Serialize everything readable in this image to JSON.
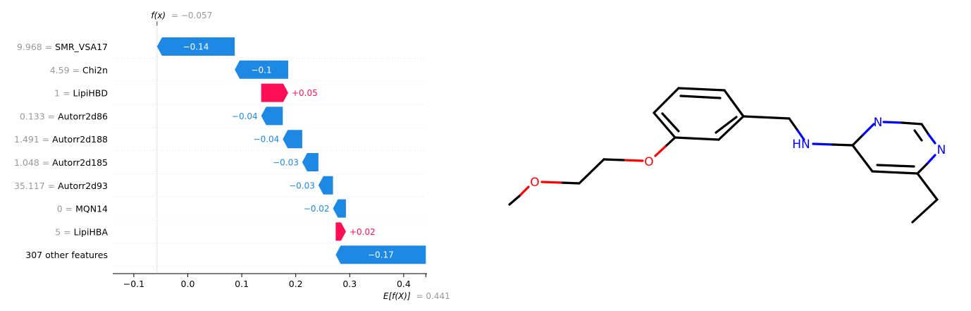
{
  "chart_data": {
    "type": "bar",
    "subtype": "waterfall",
    "title": "",
    "fx_label": "f(x)",
    "fx_value_text": "= −0.057",
    "fx": -0.057,
    "efx_label": "E[f(X)]",
    "efx_value_text": "= 0.441",
    "efx": 0.441,
    "xlim": [
      -0.14,
      0.44
    ],
    "xticks": [
      {
        "value": -0.1,
        "label": "−0.1"
      },
      {
        "value": 0.0,
        "label": "0.0"
      },
      {
        "value": 0.1,
        "label": "0.1"
      },
      {
        "value": 0.2,
        "label": "0.2"
      },
      {
        "value": 0.3,
        "label": "0.3"
      },
      {
        "value": 0.4,
        "label": "0.4"
      }
    ],
    "features": [
      {
        "value": "9.968",
        "name": "SMR_VSA17",
        "label": "−0.14",
        "start": 0.087,
        "end": -0.057
      },
      {
        "value": "4.59",
        "name": "Chi2n",
        "label": "−0.1",
        "start": 0.186,
        "end": 0.087
      },
      {
        "value": "1",
        "name": "LipiHBD",
        "label": "+0.05",
        "start": 0.136,
        "end": 0.186
      },
      {
        "value": "0.133",
        "name": "Autorr2d86",
        "label": "−0.04",
        "start": 0.176,
        "end": 0.136
      },
      {
        "value": "1.491",
        "name": "Autorr2d188",
        "label": "−0.04",
        "start": 0.212,
        "end": 0.176
      },
      {
        "value": "1.048",
        "name": "Autorr2d185",
        "label": "−0.03",
        "start": 0.242,
        "end": 0.212
      },
      {
        "value": "35.117",
        "name": "Autorr2d93",
        "label": "−0.03",
        "start": 0.269,
        "end": 0.242
      },
      {
        "value": "0",
        "name": "MQN14",
        "label": "−0.02",
        "start": 0.293,
        "end": 0.269
      },
      {
        "value": "5",
        "name": "LipiHBA",
        "label": "+0.02",
        "start": 0.274,
        "end": 0.293
      },
      {
        "value": "",
        "name": "307 other features",
        "label": "−0.17",
        "start": 0.441,
        "end": 0.274
      }
    ]
  },
  "colors": {
    "positive": "#ff0d57",
    "negative": "#1e88e5",
    "label_gray": "#999999"
  },
  "molecule": {
    "atoms": [
      {
        "symbol": "O",
        "color": "#ff0000"
      },
      {
        "symbol": "O",
        "color": "#ff0000"
      },
      {
        "symbol": "HN",
        "color": "#0000ff"
      },
      {
        "symbol": "N",
        "color": "#0000ff"
      },
      {
        "symbol": "N",
        "color": "#0000ff"
      }
    ]
  }
}
